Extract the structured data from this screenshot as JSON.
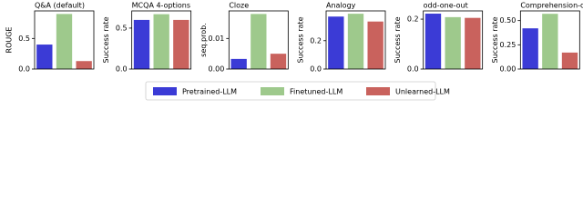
{
  "chart_data": [
    {
      "type": "bar",
      "title": "Q&A (default)",
      "y_label": "ROUGE",
      "values": [
        0.4,
        0.9,
        0.13
      ],
      "ylim": [
        0,
        0.95
      ],
      "yticks": [
        {
          "value": 0,
          "label": "0.0"
        },
        0.5
      ]
    },
    {
      "type": "bar",
      "title": "MCQA 4-options",
      "y_label": "Success rate",
      "values": [
        0.6,
        0.67,
        0.6
      ],
      "ylim": [
        0,
        0.71
      ],
      "yticks": [
        {
          "value": 0,
          "label": "0.0"
        },
        0.5
      ]
    },
    {
      "type": "bar",
      "title": "Cloze",
      "y_label": "seq.prob.",
      "values": [
        0.0033,
        0.018,
        0.005
      ],
      "ylim": [
        0,
        0.019
      ],
      "yticks": [
        {
          "value": 0,
          "label": "0.00"
        },
        0.01
      ]
    },
    {
      "type": "bar",
      "title": "Analogy",
      "y_label": "Success rate",
      "values": [
        0.37,
        0.39,
        0.335
      ],
      "ylim": [
        0,
        0.41
      ],
      "yticks": [
        {
          "value": 0,
          "label": "0.0"
        },
        0.2
      ]
    },
    {
      "type": "bar",
      "title": "odd-one-out",
      "y_label": "Success rate",
      "values": [
        0.222,
        0.208,
        0.205
      ],
      "ylim": [
        0,
        0.233
      ],
      "yticks": [
        {
          "value": 0,
          "label": "0.0"
        },
        0.2
      ]
    },
    {
      "type": "bar",
      "title": "Comprehension-qa",
      "y_label": "Success rate",
      "values": [
        0.42,
        0.57,
        0.17
      ],
      "ylim": [
        0,
        0.6
      ],
      "yticks": [
        {
          "value": 0,
          "label": "0.00"
        },
        0.25,
        {
          "value": 0.5,
          "label": "0.50"
        }
      ]
    }
  ],
  "legend": [
    {
      "name": "Pretrained-LLM",
      "color": "#3b3bd6"
    },
    {
      "name": "Finetuned-LLM",
      "color": "#9ec98c"
    },
    {
      "name": "Unlearned-LLM",
      "color": "#c9625d"
    }
  ]
}
